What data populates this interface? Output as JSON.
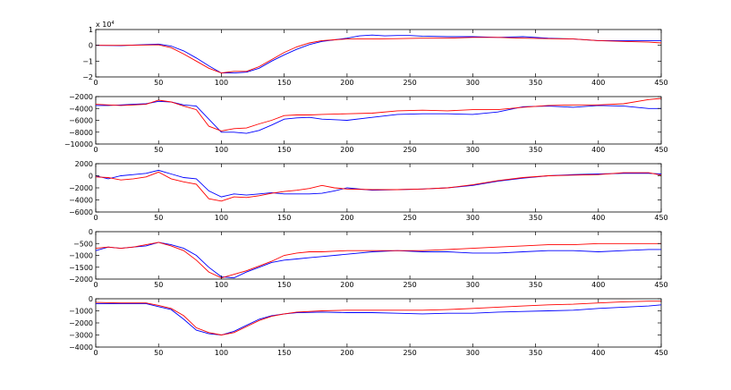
{
  "figure": {
    "background": "#ffffff",
    "axis_color": "#000000"
  },
  "chart_data": [
    {
      "type": "line",
      "xlim": [
        0,
        450
      ],
      "ylim": [
        -2,
        1
      ],
      "x_ticks": [
        0,
        50,
        100,
        150,
        200,
        250,
        300,
        350,
        400,
        450
      ],
      "y_ticks": [
        -2,
        -1,
        0,
        1
      ],
      "y_tick_labels": [
        "−2",
        "−1",
        "0",
        "1"
      ],
      "exponent_label": "x 10",
      "exponent_power": "4",
      "grid": false,
      "series": [
        {
          "color": "#0000ff",
          "x": [
            0,
            20,
            40,
            50,
            60,
            70,
            80,
            90,
            100,
            110,
            120,
            130,
            140,
            150,
            160,
            170,
            180,
            190,
            200,
            210,
            220,
            230,
            240,
            250,
            260,
            280,
            300,
            320,
            340,
            360,
            380,
            400,
            420,
            440,
            450
          ],
          "y": [
            0,
            -0.02,
            0.05,
            0.08,
            -0.05,
            -0.35,
            -0.8,
            -1.3,
            -1.75,
            -1.75,
            -1.7,
            -1.45,
            -1.0,
            -0.6,
            -0.25,
            0.05,
            0.25,
            0.35,
            0.45,
            0.6,
            0.65,
            0.6,
            0.62,
            0.62,
            0.58,
            0.55,
            0.55,
            0.5,
            0.55,
            0.45,
            0.4,
            0.3,
            0.3,
            0.3,
            0.3
          ]
        },
        {
          "color": "#ff0000",
          "x": [
            0,
            20,
            40,
            50,
            60,
            70,
            80,
            90,
            100,
            110,
            120,
            130,
            140,
            150,
            160,
            170,
            180,
            190,
            200,
            220,
            240,
            260,
            280,
            300,
            320,
            340,
            360,
            380,
            400,
            420,
            440,
            450
          ],
          "y": [
            0,
            0,
            0.02,
            0.03,
            -0.15,
            -0.55,
            -1.0,
            -1.45,
            -1.75,
            -1.65,
            -1.65,
            -1.35,
            -0.9,
            -0.45,
            -0.1,
            0.15,
            0.3,
            0.35,
            0.4,
            0.4,
            0.42,
            0.45,
            0.45,
            0.5,
            0.5,
            0.45,
            0.42,
            0.4,
            0.3,
            0.25,
            0.2,
            0.15
          ]
        }
      ]
    },
    {
      "type": "line",
      "xlim": [
        0,
        450
      ],
      "ylim": [
        -10000,
        -2000
      ],
      "x_ticks": [
        0,
        50,
        100,
        150,
        200,
        250,
        300,
        350,
        400,
        450
      ],
      "y_ticks": [
        -10000,
        -8000,
        -6000,
        -4000,
        -2000
      ],
      "y_tick_labels": [
        "−10000",
        "−8000",
        "−6000",
        "−4000",
        "−2000"
      ],
      "grid": false,
      "series": [
        {
          "color": "#0000ff",
          "x": [
            0,
            10,
            20,
            30,
            40,
            50,
            60,
            70,
            80,
            90,
            100,
            110,
            120,
            130,
            140,
            150,
            160,
            170,
            180,
            200,
            220,
            240,
            260,
            280,
            300,
            320,
            340,
            360,
            380,
            400,
            420,
            440,
            450
          ],
          "y": [
            -3500,
            -3500,
            -3400,
            -3300,
            -3200,
            -2800,
            -2900,
            -3400,
            -3600,
            -5800,
            -8000,
            -8000,
            -8200,
            -7700,
            -6800,
            -5800,
            -5600,
            -5500,
            -5800,
            -6000,
            -5500,
            -5000,
            -4900,
            -4900,
            -5000,
            -4600,
            -3700,
            -3600,
            -3800,
            -3500,
            -3600,
            -4000,
            -4000
          ]
        },
        {
          "color": "#ff0000",
          "x": [
            0,
            10,
            20,
            30,
            40,
            50,
            60,
            70,
            80,
            90,
            100,
            110,
            120,
            130,
            140,
            150,
            160,
            170,
            180,
            200,
            220,
            240,
            260,
            280,
            300,
            320,
            340,
            360,
            380,
            400,
            420,
            440,
            450
          ],
          "y": [
            -3300,
            -3400,
            -3500,
            -3400,
            -3300,
            -2600,
            -2900,
            -3600,
            -4200,
            -7000,
            -7800,
            -7400,
            -7300,
            -6600,
            -6000,
            -5200,
            -5100,
            -5100,
            -5000,
            -4900,
            -4800,
            -4400,
            -4300,
            -4400,
            -4200,
            -4200,
            -3800,
            -3500,
            -3400,
            -3400,
            -3200,
            -2500,
            -2300
          ]
        }
      ]
    },
    {
      "type": "line",
      "xlim": [
        0,
        450
      ],
      "ylim": [
        -6000,
        2000
      ],
      "x_ticks": [
        0,
        50,
        100,
        150,
        200,
        250,
        300,
        350,
        400,
        450
      ],
      "y_ticks": [
        -6000,
        -4000,
        -2000,
        0,
        2000
      ],
      "y_tick_labels": [
        "−6000",
        "−4000",
        "−2000",
        "0",
        "2000"
      ],
      "grid": false,
      "series": [
        {
          "color": "#0000ff",
          "x": [
            0,
            10,
            20,
            30,
            40,
            50,
            60,
            70,
            80,
            90,
            100,
            110,
            120,
            130,
            140,
            150,
            160,
            170,
            180,
            190,
            200,
            220,
            240,
            260,
            280,
            300,
            320,
            340,
            360,
            380,
            400,
            420,
            440,
            450
          ],
          "y": [
            0,
            -500,
            0,
            200,
            400,
            900,
            300,
            -300,
            -500,
            -2500,
            -3500,
            -3000,
            -3200,
            -3000,
            -2800,
            -3000,
            -3000,
            -3000,
            -2900,
            -2500,
            -2000,
            -2400,
            -2300,
            -2200,
            -2000,
            -1600,
            -900,
            -400,
            0,
            200,
            300,
            400,
            400,
            300
          ]
        },
        {
          "color": "#ff0000",
          "x": [
            0,
            10,
            20,
            30,
            40,
            50,
            60,
            70,
            80,
            90,
            100,
            110,
            120,
            130,
            140,
            150,
            160,
            170,
            180,
            190,
            200,
            220,
            240,
            260,
            280,
            300,
            320,
            340,
            360,
            380,
            400,
            420,
            440,
            450
          ],
          "y": [
            -200,
            -300,
            -700,
            -500,
            -200,
            600,
            -500,
            -1000,
            -1400,
            -3800,
            -4200,
            -3500,
            -3600,
            -3300,
            -2900,
            -2600,
            -2400,
            -2100,
            -1600,
            -2000,
            -2200,
            -2300,
            -2300,
            -2200,
            -2000,
            -1500,
            -800,
            -300,
            0,
            100,
            200,
            500,
            500,
            100
          ]
        }
      ]
    },
    {
      "type": "line",
      "xlim": [
        0,
        450
      ],
      "ylim": [
        -2000,
        0
      ],
      "x_ticks": [
        0,
        50,
        100,
        150,
        200,
        250,
        300,
        350,
        400,
        450
      ],
      "y_ticks": [
        -2000,
        -1500,
        -1000,
        -500,
        0
      ],
      "y_tick_labels": [
        "−2000",
        "−1500",
        "−1000",
        "−500",
        "0"
      ],
      "grid": false,
      "series": [
        {
          "color": "#0000ff",
          "x": [
            0,
            10,
            20,
            30,
            40,
            50,
            60,
            70,
            80,
            90,
            100,
            110,
            120,
            130,
            140,
            150,
            160,
            170,
            180,
            200,
            220,
            240,
            260,
            280,
            300,
            320,
            340,
            360,
            380,
            400,
            420,
            440,
            450
          ],
          "y": [
            -800,
            -650,
            -700,
            -650,
            -600,
            -450,
            -550,
            -700,
            -1000,
            -1500,
            -1900,
            -1950,
            -1700,
            -1500,
            -1300,
            -1200,
            -1150,
            -1100,
            -1050,
            -950,
            -850,
            -800,
            -850,
            -850,
            -900,
            -900,
            -850,
            -800,
            -800,
            -850,
            -800,
            -750,
            -750
          ]
        },
        {
          "color": "#ff0000",
          "x": [
            0,
            10,
            20,
            30,
            40,
            50,
            60,
            70,
            80,
            90,
            100,
            110,
            120,
            130,
            140,
            150,
            160,
            170,
            180,
            200,
            220,
            240,
            260,
            280,
            300,
            320,
            340,
            360,
            380,
            400,
            420,
            440,
            450
          ],
          "y": [
            -700,
            -650,
            -700,
            -650,
            -550,
            -450,
            -600,
            -800,
            -1200,
            -1700,
            -1950,
            -1800,
            -1650,
            -1450,
            -1250,
            -1000,
            -900,
            -850,
            -850,
            -800,
            -800,
            -800,
            -800,
            -750,
            -700,
            -650,
            -600,
            -550,
            -550,
            -500,
            -500,
            -500,
            -500
          ]
        }
      ]
    },
    {
      "type": "line",
      "xlim": [
        0,
        450
      ],
      "ylim": [
        -4000,
        0
      ],
      "x_ticks": [
        0,
        50,
        100,
        150,
        200,
        250,
        300,
        350,
        400,
        450
      ],
      "y_ticks": [
        -4000,
        -3000,
        -2000,
        -1000,
        0
      ],
      "y_tick_labels": [
        "−4000",
        "−3000",
        "−2000",
        "−1000",
        "0"
      ],
      "grid": false,
      "series": [
        {
          "color": "#0000ff",
          "x": [
            0,
            20,
            40,
            50,
            60,
            70,
            80,
            90,
            100,
            110,
            120,
            130,
            140,
            150,
            160,
            180,
            200,
            220,
            240,
            260,
            280,
            300,
            320,
            340,
            360,
            380,
            400,
            420,
            440,
            450
          ],
          "y": [
            -400,
            -400,
            -400,
            -650,
            -900,
            -1700,
            -2600,
            -2900,
            -3000,
            -2700,
            -2200,
            -1700,
            -1400,
            -1250,
            -1150,
            -1100,
            -1150,
            -1150,
            -1200,
            -1250,
            -1200,
            -1200,
            -1100,
            -1050,
            -1000,
            -950,
            -800,
            -700,
            -600,
            -500
          ]
        },
        {
          "color": "#ff0000",
          "x": [
            0,
            20,
            40,
            50,
            60,
            70,
            80,
            90,
            100,
            110,
            120,
            130,
            140,
            150,
            160,
            180,
            200,
            220,
            240,
            260,
            280,
            300,
            320,
            340,
            360,
            380,
            400,
            420,
            440,
            450
          ],
          "y": [
            -300,
            -350,
            -350,
            -550,
            -800,
            -1400,
            -2400,
            -2800,
            -3000,
            -2800,
            -2300,
            -1800,
            -1450,
            -1250,
            -1100,
            -1000,
            -950,
            -950,
            -950,
            -950,
            -900,
            -800,
            -700,
            -600,
            -500,
            -450,
            -350,
            -250,
            -200,
            -200
          ]
        }
      ]
    }
  ]
}
